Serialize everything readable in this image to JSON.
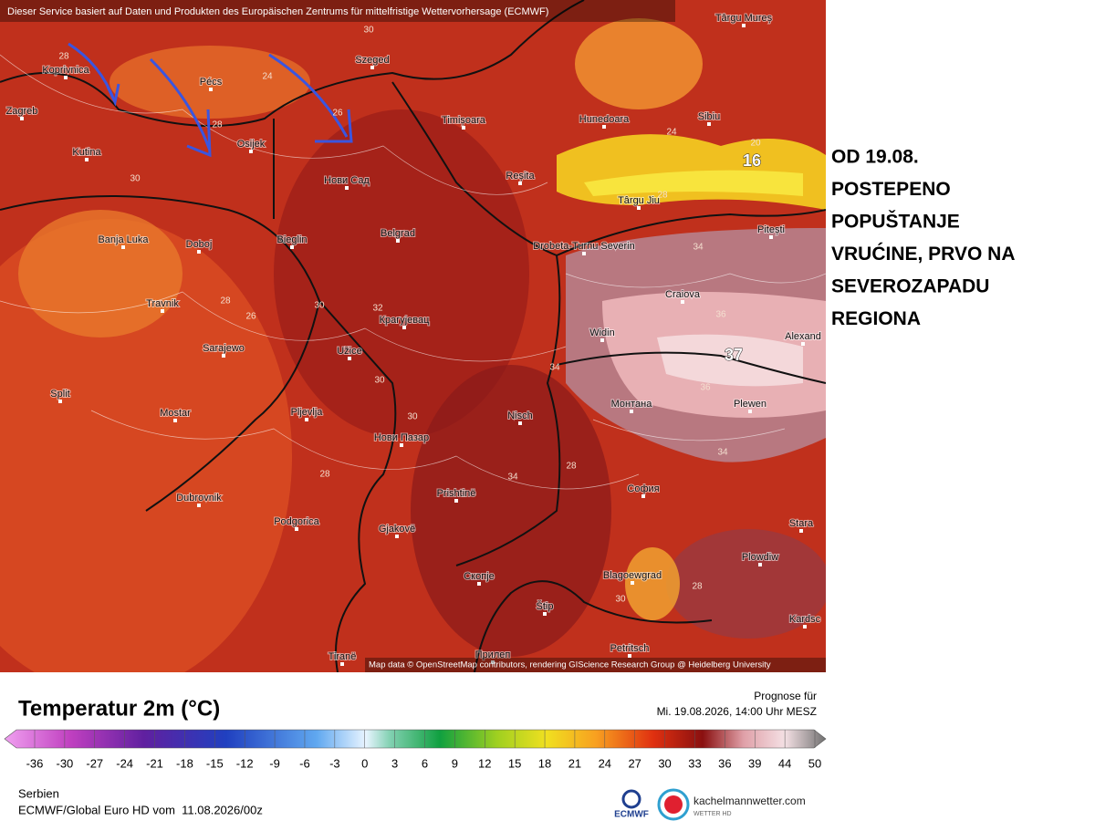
{
  "map": {
    "attribution_top": "Dieser Service basiert auf Daten und Produkten des Europäischen Zentrums für mittelfristige Wettervorhersage (ECMWF)",
    "attribution_bottom": "Map data © OpenStreetMap contributors, rendering GIScience Research Group @ Heidelberg University",
    "cities": [
      "Koprivnica",
      "Pécs",
      "Szeged",
      "Zagreb",
      "Osijek",
      "Timișoara",
      "Hunedoara",
      "Sibiu",
      "Kutina",
      "Нови Сад",
      "Reșita",
      "Târgu Jiu",
      "Banja Luka",
      "Doboj",
      "Bieglin",
      "Belgrad",
      "Drobeta-Turnu Severin",
      "Pitești",
      "Travnik",
      "Craiova",
      "Крагујевац",
      "Sarajewo",
      "Užice",
      "Widin",
      "Alexand",
      "Split",
      "Mostar",
      "Pljevlja",
      "Nisch",
      "Монтана",
      "Plewen",
      "Нови Пазар",
      "Dubrovnik",
      "Prishtinë",
      "София",
      "Podgorica",
      "Gjakovë",
      "Stara",
      "Скопје",
      "Blagoewgrad",
      "Plowdiw",
      "Štip",
      "Kardsc",
      "Tiranë",
      "Прилеп",
      "Petritsch",
      "Târgu Mureș"
    ],
    "isotherm_labels": [
      28,
      24,
      28,
      30,
      26,
      24,
      20,
      28,
      30,
      26,
      28,
      30,
      32,
      30,
      34,
      36,
      36,
      34,
      34,
      28,
      30,
      28,
      34,
      28,
      30
    ],
    "highlight_labels": [
      16,
      37
    ]
  },
  "annotation": [
    "OD 19.08.",
    "POSTEPENO",
    "POPUŠTANJE",
    "VRUĆINE, PRVO NA",
    "SEVEROZAPADU",
    "REGIONA"
  ],
  "legend": {
    "title": "Temperatur 2m (°C)",
    "ticks": [
      -36,
      -30,
      -27,
      -24,
      -21,
      -18,
      -15,
      -12,
      -9,
      -6,
      -3,
      0,
      3,
      6,
      9,
      12,
      15,
      18,
      21,
      24,
      27,
      30,
      33,
      36,
      39,
      44,
      50
    ]
  },
  "forecast": {
    "label": "Prognose für",
    "time": "Mi. 19.08.2026, 14:00 Uhr MESZ"
  },
  "footer": {
    "region": "Serbien",
    "model": "ECMWF/Global Euro HD vom  11.08.2026/00z"
  },
  "logos": {
    "ecmwf": "ECMWF",
    "brand": "kachelmannwetter.com",
    "brand_sub": "WETTER HD"
  }
}
